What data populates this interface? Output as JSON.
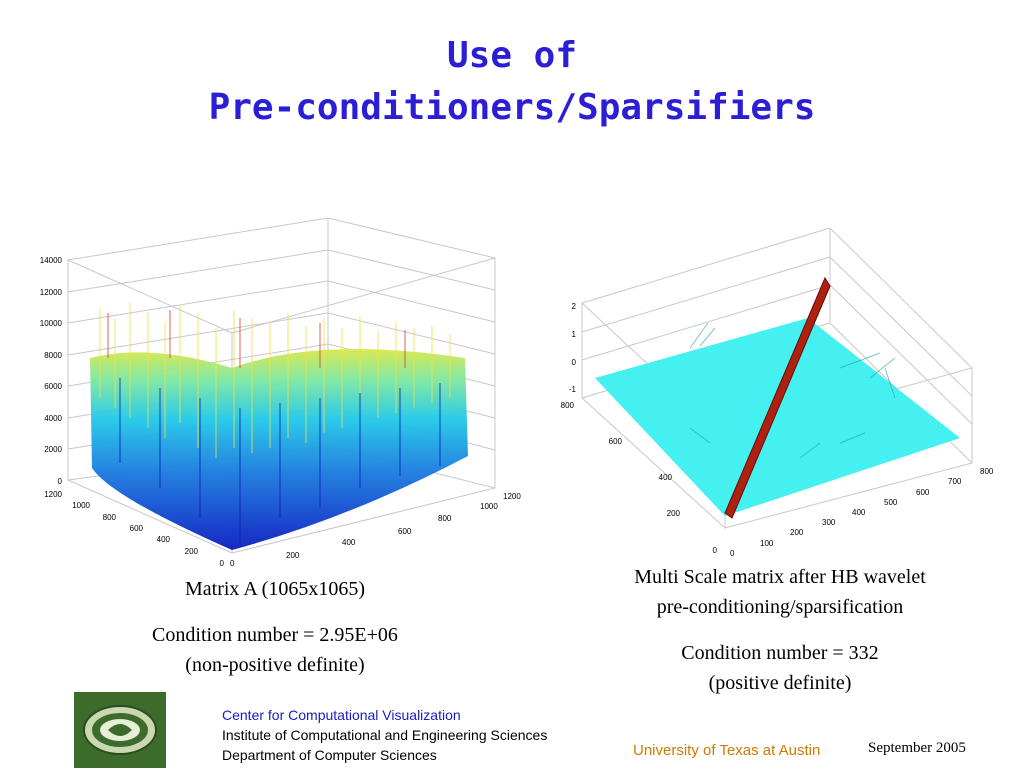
{
  "slide": {
    "title_line1": "Use of",
    "title_line2": "Pre-conditioners/Sparsifiers"
  },
  "left_figure": {
    "z_ticks": [
      "14000",
      "12000",
      "10000",
      "8000",
      "6000",
      "4000",
      "2000",
      "0"
    ],
    "left_axis_ticks": [
      "1200",
      "1000",
      "800",
      "600",
      "400",
      "200",
      "0"
    ],
    "right_axis_ticks": [
      "0",
      "200",
      "400",
      "600",
      "800",
      "1000",
      "1200"
    ],
    "caption_line1": "Matrix A  (1065x1065)",
    "caption_line2": "Condition number = 2.95E+06",
    "caption_line3": "(non-positive definite)"
  },
  "right_figure": {
    "z_ticks": [
      "2",
      "1",
      "0",
      "-1"
    ],
    "left_axis_ticks": [
      "800",
      "600",
      "400",
      "200",
      "0"
    ],
    "right_axis_ticks": [
      "0",
      "100",
      "200",
      "300",
      "400",
      "500",
      "600",
      "700",
      "800"
    ],
    "caption_line1": "Multi Scale matrix after HB wavelet",
    "caption_line2": "pre-conditioning/sparsification",
    "caption_line3": "Condition number = 332",
    "caption_line4": "(positive definite)"
  },
  "footer": {
    "line1": "Center for Computational Visualization",
    "line2": "Institute of Computational and Engineering Sciences",
    "line3": "Department of Computer Sciences",
    "university": "University of Texas at Austin",
    "date": "September  2005",
    "colors": {
      "line1": "#1a1ac8",
      "line2": "#000000",
      "university": "#d07a00"
    }
  }
}
